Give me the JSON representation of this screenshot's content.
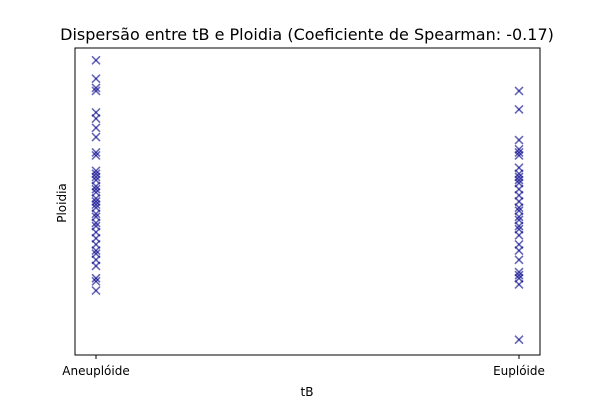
{
  "chart_data": {
    "type": "scatter",
    "title": "Dispersão entre tB e Ploidia (Coeficiente de Spearman: -0.17)",
    "xlabel": "tB",
    "ylabel": "Ploidia",
    "categories": [
      "Aneuplóide",
      "Euplóide"
    ],
    "ylim": [
      0,
      100
    ],
    "y_ticks_visible": false,
    "grid": false,
    "marker": "x",
    "color": "#00008b",
    "alpha": 0.6,
    "series": [
      {
        "category": "Aneuplóide",
        "y": [
          96,
          90,
          87,
          86,
          79,
          77,
          74,
          71,
          66,
          65,
          60,
          59,
          58,
          57,
          55,
          54,
          53,
          51,
          50,
          49,
          48,
          46,
          45,
          43,
          42,
          40,
          38,
          36,
          34,
          33,
          31,
          29,
          25,
          24,
          21
        ]
      },
      {
        "category": "Euplóide",
        "y": [
          86,
          80,
          70,
          67,
          66,
          65,
          61,
          59,
          58,
          57,
          56,
          54,
          52,
          50,
          48,
          47,
          45,
          44,
          42,
          41,
          39,
          36,
          34,
          31,
          27,
          26,
          25,
          23,
          5
        ]
      }
    ]
  }
}
